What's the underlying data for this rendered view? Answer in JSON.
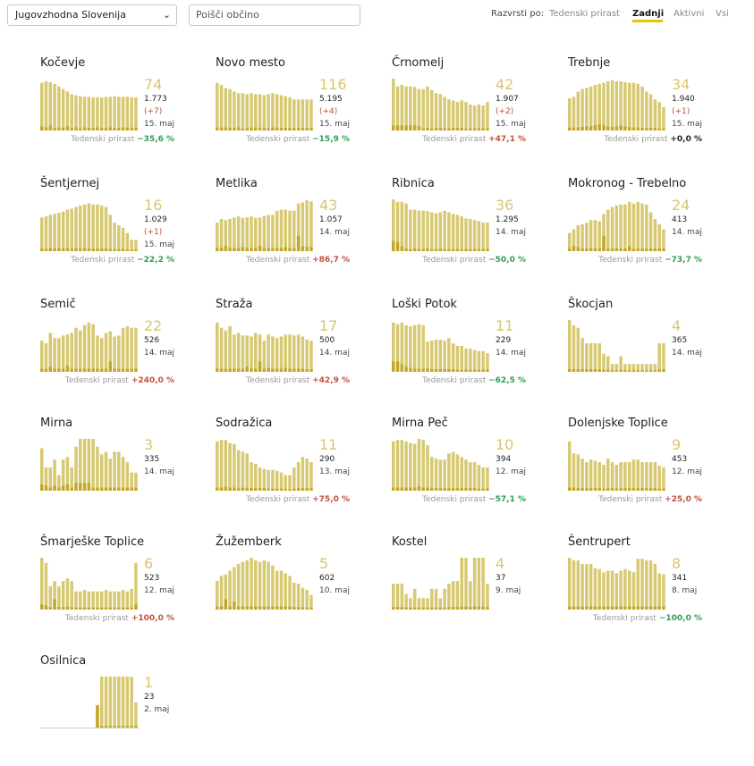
{
  "toolbar": {
    "region": "Jugovzhodna Slovenija",
    "search_placeholder": "Poišči občino",
    "sort_label": "Razvrsti po:",
    "sort_options": [
      "Tedenski prirast",
      "Zadnji",
      "Aktivni",
      "Vsi"
    ],
    "sort_active": "Zadnji"
  },
  "growth_label": "Tedenski prirast",
  "colors": {
    "bar": "#d7c972",
    "bar_dark": "#c4a72a",
    "big": "#d9c56f",
    "negative": "#2f9e5a",
    "positive": "#c0523a"
  },
  "cards": [
    {
      "name": "Kočevje",
      "latest": "74",
      "total": "1.773",
      "delta": "(+7)",
      "date": "15. maj",
      "growth": "−35,6 %",
      "trend": "neg",
      "bars": [
        0.92,
        0.95,
        0.93,
        0.9,
        0.85,
        0.8,
        0.75,
        0.7,
        0.68,
        0.66,
        0.65,
        0.65,
        0.64,
        0.64,
        0.64,
        0.65,
        0.65,
        0.66,
        0.65,
        0.65,
        0.65,
        0.64,
        0.64
      ],
      "new": [
        0.08,
        0.06,
        0.1,
        0.05,
        0.06,
        0.05,
        0.08,
        0.05,
        0.06,
        0.04,
        0.06,
        0.05,
        0.05,
        0.06,
        0.05,
        0.05,
        0.06,
        0.05,
        0.05,
        0.06,
        0.06,
        0.05,
        0.05
      ]
    },
    {
      "name": "Novo mesto",
      "latest": "116",
      "total": "5.195",
      "delta": "(+4)",
      "date": "15. maj",
      "growth": "−15,9 %",
      "trend": "neg",
      "bars": [
        0.92,
        0.88,
        0.82,
        0.8,
        0.75,
        0.72,
        0.72,
        0.7,
        0.72,
        0.7,
        0.7,
        0.68,
        0.7,
        0.72,
        0.7,
        0.68,
        0.66,
        0.64,
        0.6,
        0.6,
        0.6,
        0.6,
        0.6
      ],
      "new": [
        0.06,
        0.05,
        0.06,
        0.05,
        0.05,
        0.06,
        0.04,
        0.05,
        0.05,
        0.06,
        0.05,
        0.05,
        0.04,
        0.06,
        0.05,
        0.05,
        0.05,
        0.05,
        0.05,
        0.05,
        0.05,
        0.05,
        0.05
      ]
    },
    {
      "name": "Črnomelj",
      "latest": "42",
      "total": "1.907",
      "delta": "(+2)",
      "date": "15. maj",
      "growth": "+47,1 %",
      "trend": "pos",
      "bars": [
        1.0,
        0.85,
        0.88,
        0.85,
        0.85,
        0.84,
        0.8,
        0.8,
        0.85,
        0.78,
        0.72,
        0.7,
        0.65,
        0.6,
        0.58,
        0.55,
        0.58,
        0.55,
        0.5,
        0.48,
        0.5,
        0.48,
        0.55
      ],
      "new": [
        0.1,
        0.1,
        0.1,
        0.1,
        0.1,
        0.1,
        0.08,
        0.04,
        0.05,
        0.04,
        0.05,
        0.05,
        0.04,
        0.04,
        0.05,
        0.05,
        0.05,
        0.04,
        0.04,
        0.04,
        0.05,
        0.04,
        0.04
      ]
    },
    {
      "name": "Trebnje",
      "latest": "34",
      "total": "1.940",
      "delta": "(+1)",
      "date": "15. maj",
      "growth": "+0,0 %",
      "trend": "zero",
      "bars": [
        0.62,
        0.65,
        0.75,
        0.8,
        0.82,
        0.85,
        0.88,
        0.9,
        0.92,
        0.95,
        0.97,
        0.95,
        0.95,
        0.93,
        0.92,
        0.92,
        0.9,
        0.85,
        0.75,
        0.7,
        0.6,
        0.55,
        0.45
      ],
      "new": [
        0.05,
        0.06,
        0.06,
        0.07,
        0.08,
        0.08,
        0.1,
        0.12,
        0.1,
        0.08,
        0.07,
        0.08,
        0.1,
        0.08,
        0.07,
        0.06,
        0.06,
        0.05,
        0.05,
        0.05,
        0.05,
        0.04,
        0.04
      ]
    },
    {
      "name": "Šentjernej",
      "latest": "16",
      "total": "1.029",
      "delta": "(+1)",
      "date": "15. maj",
      "growth": "−22,2 %",
      "trend": "neg",
      "bars": [
        0.65,
        0.67,
        0.7,
        0.72,
        0.74,
        0.76,
        0.8,
        0.82,
        0.85,
        0.88,
        0.9,
        0.92,
        0.9,
        0.9,
        0.88,
        0.85,
        0.7,
        0.55,
        0.5,
        0.45,
        0.35,
        0.22,
        0.22
      ],
      "new": [
        0.05,
        0.05,
        0.06,
        0.05,
        0.06,
        0.05,
        0.06,
        0.05,
        0.06,
        0.05,
        0.06,
        0.05,
        0.05,
        0.05,
        0.05,
        0.05,
        0.04,
        0.04,
        0.04,
        0.04,
        0.03,
        0.03,
        0.03
      ]
    },
    {
      "name": "Metlika",
      "latest": "43",
      "total": "1.057",
      "delta": "",
      "date": "14. maj",
      "growth": "+86,7 %",
      "trend": "pos",
      "bars": [
        0.55,
        0.62,
        0.6,
        0.62,
        0.65,
        0.67,
        0.64,
        0.65,
        0.67,
        0.64,
        0.65,
        0.68,
        0.7,
        0.7,
        0.78,
        0.8,
        0.8,
        0.78,
        0.78,
        0.92,
        0.94,
        0.98,
        0.96
      ],
      "new": [
        0.06,
        0.06,
        0.1,
        0.06,
        0.06,
        0.06,
        0.08,
        0.06,
        0.06,
        0.06,
        0.1,
        0.06,
        0.06,
        0.06,
        0.06,
        0.06,
        0.08,
        0.06,
        0.06,
        0.3,
        0.1,
        0.08,
        0.08
      ]
    },
    {
      "name": "Ribnica",
      "latest": "36",
      "total": "1.295",
      "delta": "",
      "date": "14. maj",
      "growth": "−50,0 %",
      "trend": "neg",
      "bars": [
        1.0,
        0.95,
        0.95,
        0.92,
        0.8,
        0.8,
        0.78,
        0.78,
        0.77,
        0.75,
        0.73,
        0.75,
        0.78,
        0.75,
        0.72,
        0.7,
        0.67,
        0.63,
        0.62,
        0.6,
        0.58,
        0.55,
        0.55
      ],
      "new": [
        0.2,
        0.18,
        0.1,
        0.05,
        0.04,
        0.05,
        0.04,
        0.04,
        0.05,
        0.04,
        0.04,
        0.05,
        0.04,
        0.04,
        0.04,
        0.04,
        0.04,
        0.04,
        0.04,
        0.04,
        0.04,
        0.04,
        0.04
      ]
    },
    {
      "name": "Mokronog - Trebelno",
      "latest": "24",
      "total": "413",
      "delta": "",
      "date": "14. maj",
      "growth": "−73,7 %",
      "trend": "neg",
      "bars": [
        0.35,
        0.42,
        0.5,
        0.52,
        0.55,
        0.6,
        0.6,
        0.58,
        0.72,
        0.8,
        0.85,
        0.88,
        0.9,
        0.9,
        0.95,
        0.92,
        0.95,
        0.92,
        0.9,
        0.75,
        0.62,
        0.52,
        0.42
      ],
      "new": [
        0.05,
        0.1,
        0.08,
        0.05,
        0.05,
        0.06,
        0.05,
        0.05,
        0.3,
        0.05,
        0.05,
        0.06,
        0.05,
        0.05,
        0.1,
        0.05,
        0.06,
        0.05,
        0.05,
        0.05,
        0.05,
        0.05,
        0.05
      ]
    },
    {
      "name": "Semič",
      "latest": "22",
      "total": "526",
      "delta": "",
      "date": "14. maj",
      "growth": "+240,0 %",
      "trend": "pos",
      "bars": [
        0.6,
        0.55,
        0.75,
        0.65,
        0.65,
        0.7,
        0.72,
        0.75,
        0.85,
        0.8,
        0.9,
        0.95,
        0.92,
        0.7,
        0.65,
        0.75,
        0.78,
        0.68,
        0.7,
        0.85,
        0.88,
        0.85,
        0.85
      ],
      "new": [
        0.06,
        0.06,
        0.1,
        0.06,
        0.06,
        0.06,
        0.12,
        0.06,
        0.06,
        0.06,
        0.06,
        0.06,
        0.06,
        0.06,
        0.06,
        0.06,
        0.2,
        0.06,
        0.06,
        0.06,
        0.06,
        0.06,
        0.06
      ]
    },
    {
      "name": "Straža",
      "latest": "17",
      "total": "500",
      "delta": "",
      "date": "14. maj",
      "growth": "+42,9 %",
      "trend": "pos",
      "bars": [
        0.95,
        0.85,
        0.8,
        0.88,
        0.72,
        0.75,
        0.7,
        0.7,
        0.68,
        0.75,
        0.72,
        0.6,
        0.72,
        0.68,
        0.65,
        0.68,
        0.72,
        0.72,
        0.7,
        0.72,
        0.68,
        0.62,
        0.6
      ],
      "new": [
        0.06,
        0.06,
        0.06,
        0.06,
        0.06,
        0.06,
        0.06,
        0.1,
        0.06,
        0.06,
        0.2,
        0.06,
        0.08,
        0.06,
        0.06,
        0.06,
        0.08,
        0.06,
        0.06,
        0.06,
        0.06,
        0.05,
        0.05
      ]
    },
    {
      "name": "Loški Potok",
      "latest": "11",
      "total": "229",
      "delta": "",
      "date": "14. maj",
      "growth": "−62,5 %",
      "trend": "neg",
      "bars": [
        0.95,
        0.92,
        0.95,
        0.9,
        0.88,
        0.9,
        0.92,
        0.9,
        0.58,
        0.6,
        0.62,
        0.62,
        0.6,
        0.65,
        0.55,
        0.5,
        0.5,
        0.45,
        0.45,
        0.42,
        0.4,
        0.4,
        0.36
      ],
      "new": [
        0.2,
        0.2,
        0.15,
        0.1,
        0.08,
        0.06,
        0.06,
        0.06,
        0.06,
        0.05,
        0.05,
        0.05,
        0.05,
        0.05,
        0.05,
        0.04,
        0.04,
        0.04,
        0.04,
        0.04,
        0.04,
        0.04,
        0.04
      ]
    },
    {
      "name": "Škocjan",
      "latest": "4",
      "total": "365",
      "delta": "",
      "date": "14. maj",
      "growth": "",
      "trend": "none",
      "bars": [
        1.0,
        0.9,
        0.85,
        0.65,
        0.55,
        0.55,
        0.55,
        0.55,
        0.35,
        0.3,
        0.15,
        0.15,
        0.3,
        0.15,
        0.15,
        0.15,
        0.15,
        0.15,
        0.15,
        0.15,
        0.15,
        0.55,
        0.55
      ],
      "new": [
        0.05,
        0.05,
        0.05,
        0.05,
        0.05,
        0.05,
        0.05,
        0.05,
        0.04,
        0.04,
        0.03,
        0.03,
        0.04,
        0.03,
        0.03,
        0.03,
        0.03,
        0.03,
        0.03,
        0.03,
        0.03,
        0.05,
        0.05
      ]
    },
    {
      "name": "Mirna",
      "latest": "3",
      "total": "335",
      "delta": "",
      "date": "14. maj",
      "growth": "",
      "trend": "none",
      "bars": [
        0.82,
        0.45,
        0.45,
        0.6,
        0.3,
        0.6,
        0.65,
        0.45,
        0.85,
        1.0,
        1.0,
        1.0,
        1.0,
        0.85,
        0.7,
        0.75,
        0.62,
        0.75,
        0.75,
        0.65,
        0.55,
        0.35,
        0.35
      ],
      "new": [
        0.12,
        0.1,
        0.06,
        0.1,
        0.06,
        0.1,
        0.12,
        0.06,
        0.15,
        0.15,
        0.15,
        0.15,
        0.06,
        0.06,
        0.06,
        0.06,
        0.06,
        0.06,
        0.06,
        0.06,
        0.06,
        0.06,
        0.06
      ]
    },
    {
      "name": "Sodražica",
      "latest": "11",
      "total": "290",
      "delta": "",
      "date": "13. maj",
      "growth": "+75,0 %",
      "trend": "pos",
      "bars": [
        0.95,
        0.98,
        0.98,
        0.92,
        0.9,
        0.78,
        0.75,
        0.72,
        0.55,
        0.52,
        0.45,
        0.42,
        0.4,
        0.4,
        0.38,
        0.35,
        0.3,
        0.3,
        0.45,
        0.55,
        0.65,
        0.62,
        0.55
      ],
      "new": [
        0.06,
        0.06,
        0.08,
        0.06,
        0.06,
        0.05,
        0.06,
        0.05,
        0.05,
        0.05,
        0.05,
        0.05,
        0.04,
        0.04,
        0.04,
        0.04,
        0.03,
        0.03,
        0.04,
        0.05,
        0.05,
        0.05,
        0.05
      ]
    },
    {
      "name": "Mirna Peč",
      "latest": "10",
      "total": "394",
      "delta": "",
      "date": "12. maj",
      "growth": "−57,1 %",
      "trend": "neg",
      "bars": [
        0.95,
        0.98,
        0.98,
        0.95,
        0.92,
        0.9,
        1.0,
        0.98,
        0.88,
        0.65,
        0.62,
        0.6,
        0.6,
        0.72,
        0.75,
        0.7,
        0.65,
        0.6,
        0.55,
        0.55,
        0.5,
        0.45,
        0.45
      ],
      "new": [
        0.06,
        0.06,
        0.06,
        0.06,
        0.06,
        0.06,
        0.08,
        0.06,
        0.06,
        0.05,
        0.05,
        0.05,
        0.05,
        0.05,
        0.05,
        0.05,
        0.05,
        0.05,
        0.05,
        0.05,
        0.04,
        0.04,
        0.04
      ]
    },
    {
      "name": "Dolenjske Toplice",
      "latest": "9",
      "total": "453",
      "delta": "",
      "date": "12. maj",
      "growth": "+25,0 %",
      "trend": "pos",
      "bars": [
        0.95,
        0.72,
        0.7,
        0.62,
        0.55,
        0.6,
        0.58,
        0.55,
        0.5,
        0.62,
        0.55,
        0.5,
        0.55,
        0.55,
        0.55,
        0.6,
        0.6,
        0.55,
        0.55,
        0.55,
        0.55,
        0.48,
        0.45
      ],
      "new": [
        0.06,
        0.06,
        0.05,
        0.05,
        0.05,
        0.05,
        0.05,
        0.05,
        0.04,
        0.05,
        0.05,
        0.04,
        0.05,
        0.05,
        0.05,
        0.05,
        0.05,
        0.05,
        0.05,
        0.05,
        0.05,
        0.04,
        0.04
      ]
    },
    {
      "name": "Šmarješke Toplice",
      "latest": "6",
      "total": "523",
      "delta": "",
      "date": "12. maj",
      "growth": "+100,0 %",
      "trend": "pos",
      "bars": [
        1.0,
        0.9,
        0.45,
        0.55,
        0.45,
        0.55,
        0.6,
        0.55,
        0.35,
        0.35,
        0.38,
        0.35,
        0.35,
        0.35,
        0.35,
        0.38,
        0.35,
        0.35,
        0.35,
        0.38,
        0.35,
        0.4,
        0.9
      ],
      "new": [
        0.1,
        0.08,
        0.05,
        0.2,
        0.05,
        0.05,
        0.06,
        0.05,
        0.04,
        0.04,
        0.04,
        0.04,
        0.04,
        0.04,
        0.04,
        0.04,
        0.04,
        0.04,
        0.04,
        0.04,
        0.04,
        0.04,
        0.1
      ]
    },
    {
      "name": "Žužemberk",
      "latest": "5",
      "total": "602",
      "delta": "",
      "date": "10. maj",
      "growth": "",
      "trend": "none",
      "bars": [
        0.55,
        0.65,
        0.68,
        0.75,
        0.82,
        0.88,
        0.92,
        0.95,
        1.0,
        0.95,
        0.92,
        0.95,
        0.92,
        0.85,
        0.75,
        0.75,
        0.7,
        0.65,
        0.52,
        0.5,
        0.42,
        0.38,
        0.28
      ],
      "new": [
        0.06,
        0.06,
        0.2,
        0.06,
        0.15,
        0.06,
        0.06,
        0.06,
        0.06,
        0.06,
        0.06,
        0.06,
        0.06,
        0.06,
        0.06,
        0.06,
        0.06,
        0.06,
        0.05,
        0.05,
        0.04,
        0.04,
        0.04
      ]
    },
    {
      "name": "Kostel",
      "latest": "4",
      "total": "37",
      "delta": "",
      "date": "9. maj",
      "growth": "",
      "trend": "none",
      "bars": [
        0.5,
        0.5,
        0.5,
        0.3,
        0.22,
        0.4,
        0.22,
        0.22,
        0.22,
        0.4,
        0.4,
        0.22,
        0.4,
        0.5,
        0.55,
        0.55,
        1.0,
        1.0,
        0.55,
        1.0,
        1.0,
        1.0,
        0.5
      ],
      "new": [
        0.05,
        0.05,
        0.05,
        0.04,
        0.04,
        0.04,
        0.04,
        0.04,
        0.04,
        0.04,
        0.04,
        0.04,
        0.04,
        0.05,
        0.05,
        0.05,
        0.06,
        0.06,
        0.05,
        0.06,
        0.06,
        0.06,
        0.05
      ]
    },
    {
      "name": "Šentrupert",
      "latest": "8",
      "total": "341",
      "delta": "",
      "date": "8. maj",
      "growth": "−100,0 %",
      "trend": "neg",
      "bars": [
        1.0,
        0.95,
        0.95,
        0.88,
        0.88,
        0.88,
        0.8,
        0.78,
        0.72,
        0.75,
        0.75,
        0.7,
        0.75,
        0.78,
        0.75,
        0.72,
        0.98,
        0.98,
        0.95,
        0.95,
        0.88,
        0.7,
        0.68
      ],
      "new": [
        0.06,
        0.06,
        0.06,
        0.06,
        0.06,
        0.06,
        0.06,
        0.06,
        0.06,
        0.06,
        0.06,
        0.06,
        0.06,
        0.06,
        0.06,
        0.06,
        0.06,
        0.06,
        0.06,
        0.06,
        0.06,
        0.06,
        0.06
      ]
    },
    {
      "name": "Osilnica",
      "latest": "1",
      "total": "23",
      "delta": "",
      "date": "2. maj",
      "growth": "",
      "trend": "none",
      "bars": [
        0,
        0,
        0,
        0,
        0,
        0,
        0,
        0,
        0,
        0,
        0,
        0,
        0,
        0.45,
        1.0,
        1.0,
        1.0,
        1.0,
        1.0,
        1.0,
        1.0,
        1.0,
        0.5
      ],
      "new": [
        0,
        0,
        0,
        0,
        0,
        0,
        0,
        0,
        0,
        0,
        0,
        0,
        0,
        0.45,
        0.05,
        0.05,
        0.05,
        0.05,
        0.05,
        0.05,
        0.05,
        0.05,
        0.05
      ]
    }
  ]
}
